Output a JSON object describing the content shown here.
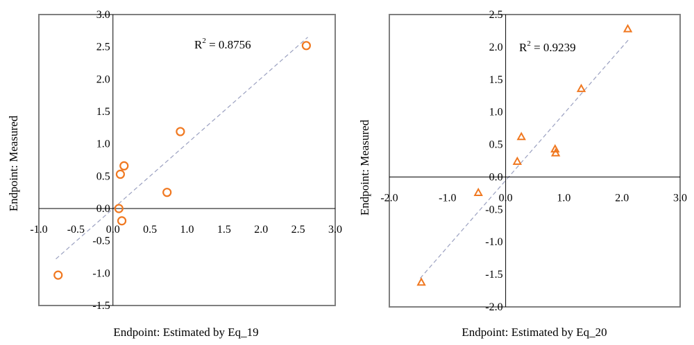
{
  "colors": {
    "marker": "#f07820",
    "trend": "#9aa0c0",
    "frame": "#7f7f7f",
    "axis": "#000000"
  },
  "chart_data": [
    {
      "type": "scatter",
      "marker": "circle",
      "xlabel": "Endpoint: Estimated by Eq_19",
      "ylabel": "Endpoint: Measured",
      "r2_label": "R",
      "r2_sup": "2",
      "r2_value": " = 0.8756",
      "xlim": [
        -1.0,
        3.0
      ],
      "ylim": [
        -1.5,
        3.0
      ],
      "xticks": [
        -1.0,
        -0.5,
        0.0,
        0.5,
        1.0,
        1.5,
        2.0,
        2.5,
        3.0
      ],
      "xtick_labels": [
        "-1.0",
        "-0.5",
        "0.0",
        "0.5",
        "1.0",
        "1.5",
        "2.0",
        "2.5",
        "3.0"
      ],
      "yticks": [
        -1.5,
        -1.0,
        -0.5,
        0.0,
        0.5,
        1.0,
        1.5,
        2.0,
        2.5,
        3.0
      ],
      "ytick_labels": [
        "-1.5",
        "-1.0",
        "-0.5",
        "0.0",
        "0.5",
        "1.0",
        "1.5",
        "2.0",
        "2.5",
        "3.0"
      ],
      "points": [
        {
          "x": -0.74,
          "y": -1.03
        },
        {
          "x": 0.08,
          "y": 0.0
        },
        {
          "x": 0.12,
          "y": -0.19
        },
        {
          "x": 0.1,
          "y": 0.53
        },
        {
          "x": 0.15,
          "y": 0.66
        },
        {
          "x": 0.73,
          "y": 0.25
        },
        {
          "x": 0.91,
          "y": 1.19
        },
        {
          "x": 2.61,
          "y": 2.52
        }
      ],
      "trendline": {
        "x": [
          -0.77,
          2.63
        ],
        "y": [
          -0.78,
          2.65
        ]
      }
    },
    {
      "type": "scatter",
      "marker": "triangle",
      "xlabel": "Endpoint: Estimated by Eq_20",
      "ylabel": "Endpoint: Measured",
      "r2_label": "R",
      "r2_sup": "2",
      "r2_value": " = 0.9239",
      "xlim": [
        -2.0,
        3.0
      ],
      "ylim": [
        -2.0,
        2.5
      ],
      "xticks": [
        -2.0,
        -1.0,
        0.0,
        1.0,
        2.0,
        3.0
      ],
      "xtick_labels": [
        "-2.0",
        "-1.0",
        "0.0",
        "1.0",
        "2.0",
        "3.0"
      ],
      "yticks": [
        -2.0,
        -1.5,
        -1.0,
        -0.5,
        0.0,
        0.5,
        1.0,
        1.5,
        2.0,
        2.5
      ],
      "ytick_labels": [
        "-2.0",
        "-1.5",
        "-1.0",
        "-0.5",
        "0.0",
        "0.5",
        "1.0",
        "1.5",
        "2.0",
        "2.5"
      ],
      "points": [
        {
          "x": -1.45,
          "y": -1.62
        },
        {
          "x": -0.47,
          "y": -0.24
        },
        {
          "x": 0.2,
          "y": 0.24
        },
        {
          "x": 0.27,
          "y": 0.62
        },
        {
          "x": 0.85,
          "y": 0.43
        },
        {
          "x": 0.86,
          "y": 0.37
        },
        {
          "x": 1.3,
          "y": 1.36
        },
        {
          "x": 2.1,
          "y": 2.28
        }
      ],
      "trendline": {
        "x": [
          -1.47,
          2.13
        ],
        "y": [
          -1.56,
          2.13
        ]
      }
    }
  ]
}
